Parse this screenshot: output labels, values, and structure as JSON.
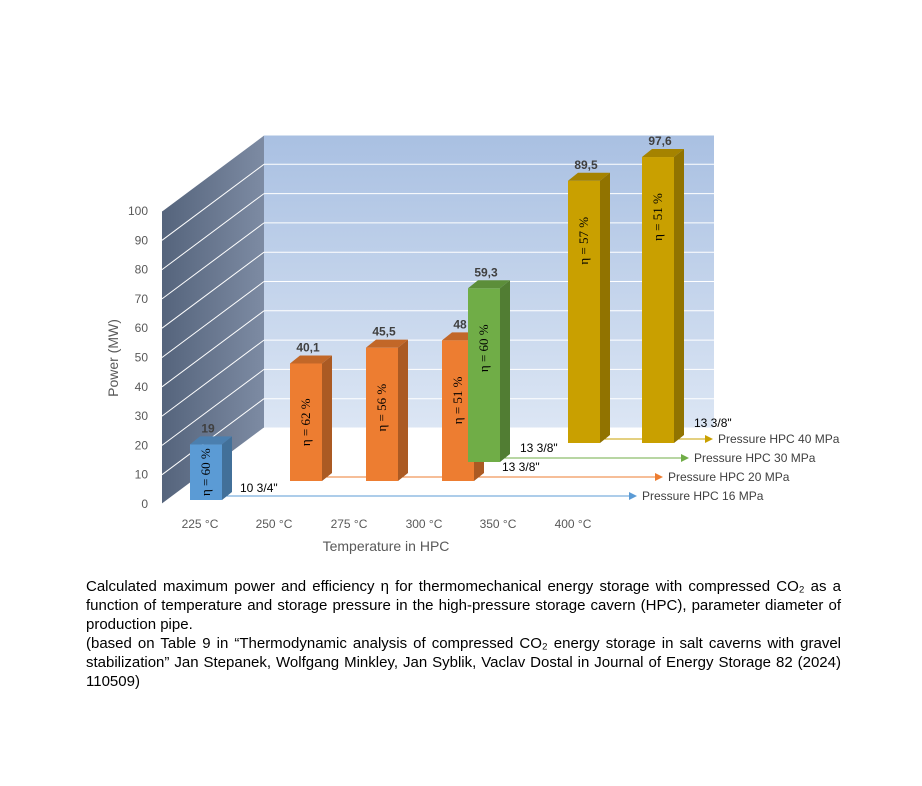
{
  "chart_data": {
    "type": "bar",
    "subtype": "3d-clustered-column",
    "xlabel": "Temperature in HPC",
    "ylabel": "Power (MW)",
    "ylim": [
      0,
      100
    ],
    "yticks": [
      "0",
      "10",
      "20",
      "30",
      "40",
      "50",
      "60",
      "70",
      "80",
      "90",
      "100"
    ],
    "categories": [
      "225 °C",
      "250 °C",
      "275 °C",
      "300 °C",
      "350 °C",
      "400 °C"
    ],
    "colors": {
      "s16": "#5B9BD5",
      "s20": "#ED7D31",
      "s30": "#70AD47",
      "s40": "#C9A000",
      "wall": "#B4C7E7",
      "side_wall": "#6B7B95"
    },
    "series": [
      {
        "name": "Pressure HPC 16 MPa",
        "pipe": "10 3/4\"",
        "points": [
          {
            "category": "225 °C",
            "value": 19,
            "label": "19",
            "eta": "η = 60 %"
          }
        ]
      },
      {
        "name": "Pressure HPC 20 MPa",
        "pipe": "13 3/8\"",
        "points": [
          {
            "category": "250 °C",
            "value": 40.1,
            "label": "40,1",
            "eta": "η = 62 %"
          },
          {
            "category": "275 °C",
            "value": 45.5,
            "label": "45,5",
            "eta": "η = 56 %"
          },
          {
            "category": "300 °C",
            "value": 48,
            "label": "48",
            "eta": "η = 51 %"
          }
        ]
      },
      {
        "name": "Pressure HPC 30 MPa",
        "pipe": "13 3/8\"",
        "points": [
          {
            "category": "350 °C",
            "value": 59.3,
            "label": "59,3",
            "eta": "η = 60 %"
          }
        ]
      },
      {
        "name": "Pressure HPC 40 MPa",
        "pipe": "13 3/8\"",
        "points": [
          {
            "category": "400 °C",
            "value": 89.5,
            "label": "89,5",
            "eta": "η = 57 %"
          },
          {
            "category": "400 °C",
            "value": 97.6,
            "label": "97,6",
            "eta": "η = 51 %"
          }
        ]
      }
    ]
  },
  "caption": {
    "paragraph1": "Calculated maximum power and efficiency η for thermomechanical energy storage with compressed CO₂ as a function of temperature and storage pressure in the high-pressure storage cavern (HPC), parameter diameter of production pipe.",
    "paragraph2": "(based on Table 9 in “Thermodynamic analysis of compressed CO₂ energy storage in salt caverns with gravel stabilization” Jan Stepanek, Wolfgang Minkley, Jan Syblik, Vaclav Dostal in Journal of Energy Storage 82 (2024) 110509)"
  }
}
